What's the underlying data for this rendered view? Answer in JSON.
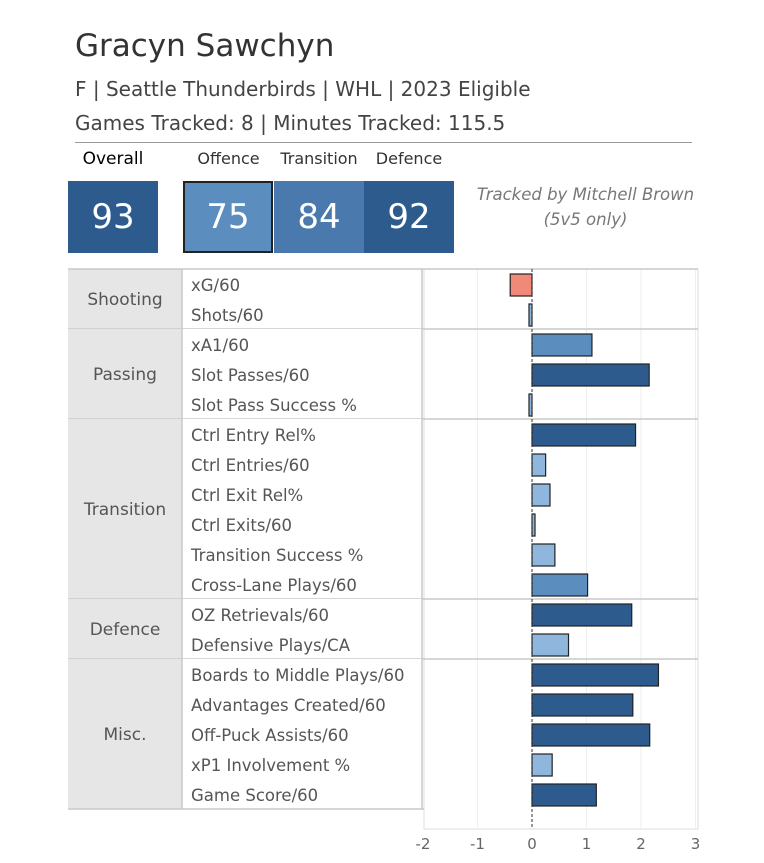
{
  "player": {
    "name": "Gracyn Sawchyn",
    "line1": "F | Seattle Thunderbirds | WHL | 2023 Eligible",
    "line2": "Games Tracked: 8 | Minutes Tracked: 115.5"
  },
  "scores": {
    "overall_label": "Overall",
    "overall": "93",
    "offence_label": "Offence",
    "offence": "75",
    "transition_label": "Transition",
    "transition": "84",
    "defence_label": "Defence",
    "defence": "92"
  },
  "credit": {
    "line1": "Tracked by Mitchell Brown",
    "line2": "(5v5 only)"
  },
  "colors": {
    "dark": "#2e5b8e",
    "mid": "#5b8dbf",
    "light": "#8fb7dd",
    "negative": "#f08978",
    "group_bg": "#e6e6e6"
  },
  "chart_data": {
    "type": "bar",
    "orientation": "horizontal",
    "xlim": [
      -2,
      3
    ],
    "x_ticks": [
      "-2",
      "-1",
      "0",
      "1",
      "2",
      "3"
    ],
    "groups": [
      {
        "name": "Shooting",
        "metrics": [
          {
            "label": "xG/60",
            "value": -0.4,
            "shade": "negative"
          },
          {
            "label": "Shots/60",
            "value": -0.03,
            "shade": "light"
          }
        ]
      },
      {
        "name": "Passing",
        "metrics": [
          {
            "label": "xA1/60",
            "value": 1.1,
            "shade": "mid"
          },
          {
            "label": "Slot Passes/60",
            "value": 2.15,
            "shade": "dark"
          },
          {
            "label": "Slot Pass Success %",
            "value": -0.05,
            "shade": "light"
          }
        ]
      },
      {
        "name": "Transition",
        "metrics": [
          {
            "label": "Ctrl Entry Rel%",
            "value": 1.9,
            "shade": "dark"
          },
          {
            "label": "Ctrl Entries/60",
            "value": 0.25,
            "shade": "light"
          },
          {
            "label": "Ctrl Exit Rel%",
            "value": 0.33,
            "shade": "light"
          },
          {
            "label": "Ctrl Exits/60",
            "value": 0.05,
            "shade": "light"
          },
          {
            "label": "Transition Success %",
            "value": 0.42,
            "shade": "light"
          },
          {
            "label": "Cross-Lane Plays/60",
            "value": 1.02,
            "shade": "mid"
          }
        ]
      },
      {
        "name": "Defence",
        "metrics": [
          {
            "label": "OZ Retrievals/60",
            "value": 1.83,
            "shade": "dark"
          },
          {
            "label": "Defensive Plays/CA",
            "value": 0.67,
            "shade": "light"
          }
        ]
      },
      {
        "name": "Misc.",
        "metrics": [
          {
            "label": "Boards to Middle Plays/60",
            "value": 2.32,
            "shade": "dark"
          },
          {
            "label": "Advantages Created/60",
            "value": 1.85,
            "shade": "dark"
          },
          {
            "label": "Off-Puck Assists/60",
            "value": 2.16,
            "shade": "dark"
          },
          {
            "label": "xP1 Involvement %",
            "value": 0.37,
            "shade": "light"
          },
          {
            "label": "Game Score/60",
            "value": 1.18,
            "shade": "dark"
          }
        ]
      }
    ]
  }
}
